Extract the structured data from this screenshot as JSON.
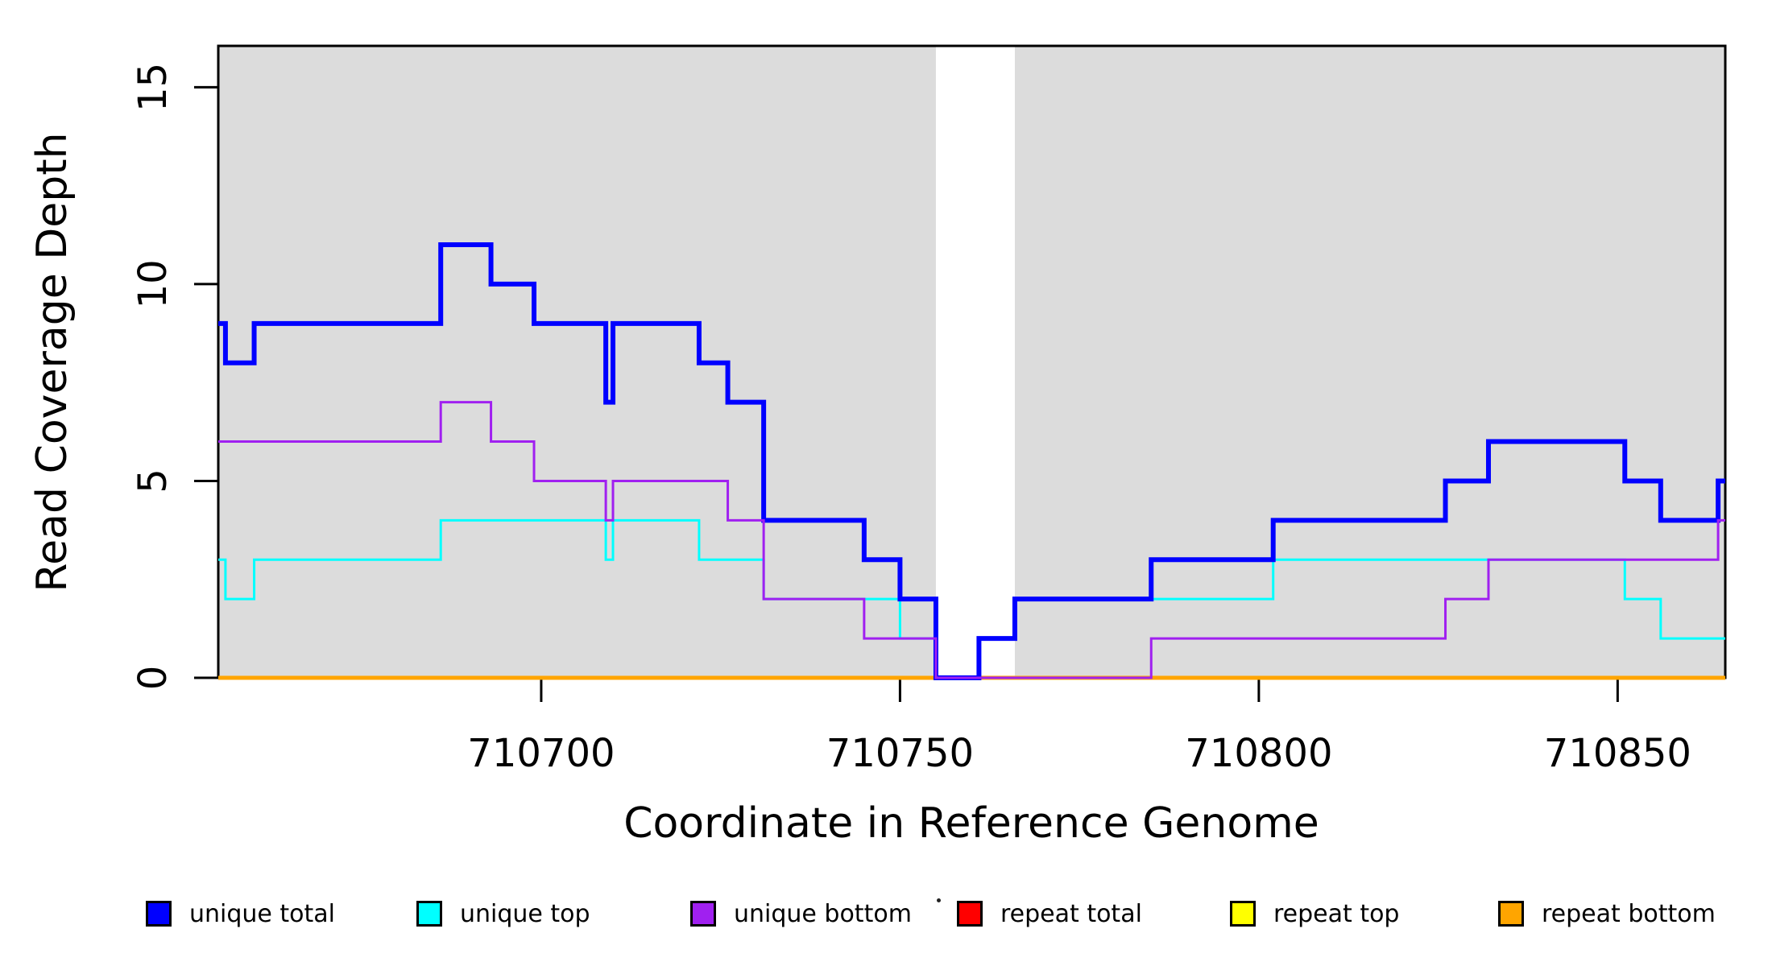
{
  "figure": {
    "background": "#ffffff",
    "panel_fill": "#DCDCDC",
    "gap_fill": "#ffffff",
    "border_color": "#000000"
  },
  "chart_data": {
    "type": "line",
    "subtype": "step-coverage",
    "title": "",
    "xlabel": "Coordinate in Reference Genome",
    "ylabel": "Read Coverage Depth",
    "xlim": [
      710655,
      710865
    ],
    "ylim": [
      0,
      16.05
    ],
    "xticks": [
      710700,
      710750,
      710800,
      710850
    ],
    "yticks": [
      0,
      5,
      10,
      15
    ],
    "grid": false,
    "legend_position": "bottom",
    "shaded_regions": [
      {
        "from": 710655,
        "to": 710755,
        "color": "#DCDCDC"
      },
      {
        "from": 710766,
        "to": 710865,
        "color": "#DCDCDC"
      }
    ],
    "unshaded_gap": {
      "from": 710755,
      "to": 710766
    },
    "series": [
      {
        "name": "repeat total",
        "color": "#FF0000",
        "width": 5,
        "step_points": [
          [
            710655,
            0
          ]
        ]
      },
      {
        "name": "repeat top",
        "color": "#FFFF00",
        "width": 5,
        "step_points": [
          [
            710655,
            0
          ]
        ]
      },
      {
        "name": "repeat bottom",
        "color": "#FFA500",
        "width": 5,
        "step_points": [
          [
            710655,
            0
          ]
        ]
      },
      {
        "name": "unique top",
        "color": "#00FFFF",
        "width": 3,
        "step_points": [
          [
            710655,
            3
          ],
          [
            710656,
            2
          ],
          [
            710660,
            3
          ],
          [
            710686,
            4
          ],
          [
            710709,
            3
          ],
          [
            710710,
            4
          ],
          [
            710722,
            3
          ],
          [
            710731,
            2
          ],
          [
            710750,
            1
          ],
          [
            710755,
            0
          ],
          [
            710761,
            1
          ],
          [
            710766,
            2
          ],
          [
            710802,
            3
          ],
          [
            710851,
            2
          ],
          [
            710856,
            1
          ]
        ]
      },
      {
        "name": "unique total",
        "color": "#0000FF",
        "width": 6,
        "step_points": [
          [
            710655,
            9
          ],
          [
            710656,
            8
          ],
          [
            710660,
            9
          ],
          [
            710686,
            11
          ],
          [
            710693,
            10
          ],
          [
            710699,
            9
          ],
          [
            710709,
            7
          ],
          [
            710710,
            9
          ],
          [
            710722,
            8
          ],
          [
            710726,
            7
          ],
          [
            710731,
            4
          ],
          [
            710745,
            3
          ],
          [
            710750,
            2
          ],
          [
            710755,
            0
          ],
          [
            710761,
            1
          ],
          [
            710766,
            2
          ],
          [
            710785,
            3
          ],
          [
            710802,
            4
          ],
          [
            710826,
            5
          ],
          [
            710832,
            6
          ],
          [
            710851,
            5
          ],
          [
            710856,
            4
          ],
          [
            710864,
            5
          ]
        ]
      },
      {
        "name": "unique bottom",
        "color": "#A020F0",
        "width": 3,
        "step_points": [
          [
            710655,
            6
          ],
          [
            710686,
            7
          ],
          [
            710693,
            6
          ],
          [
            710699,
            5
          ],
          [
            710709,
            4
          ],
          [
            710710,
            5
          ],
          [
            710726,
            4
          ],
          [
            710731,
            2
          ],
          [
            710745,
            1
          ],
          [
            710755,
            0
          ],
          [
            710785,
            1
          ],
          [
            710826,
            2
          ],
          [
            710832,
            3
          ],
          [
            710864,
            4
          ]
        ]
      }
    ],
    "legend": [
      {
        "label": "unique total",
        "color": "#0000FF"
      },
      {
        "label": "unique top",
        "color": "#00FFFF"
      },
      {
        "label": "unique bottom",
        "color": "#A020F0"
      },
      {
        "label": "repeat total",
        "color": "#FF0000"
      },
      {
        "label": "repeat top",
        "color": "#FFFF00"
      },
      {
        "label": "repeat bottom",
        "color": "#FFA500"
      }
    ],
    "artifacts": [
      {
        "type": "small-dot",
        "location": "between unique bottom and repeat total legend entries"
      }
    ]
  }
}
